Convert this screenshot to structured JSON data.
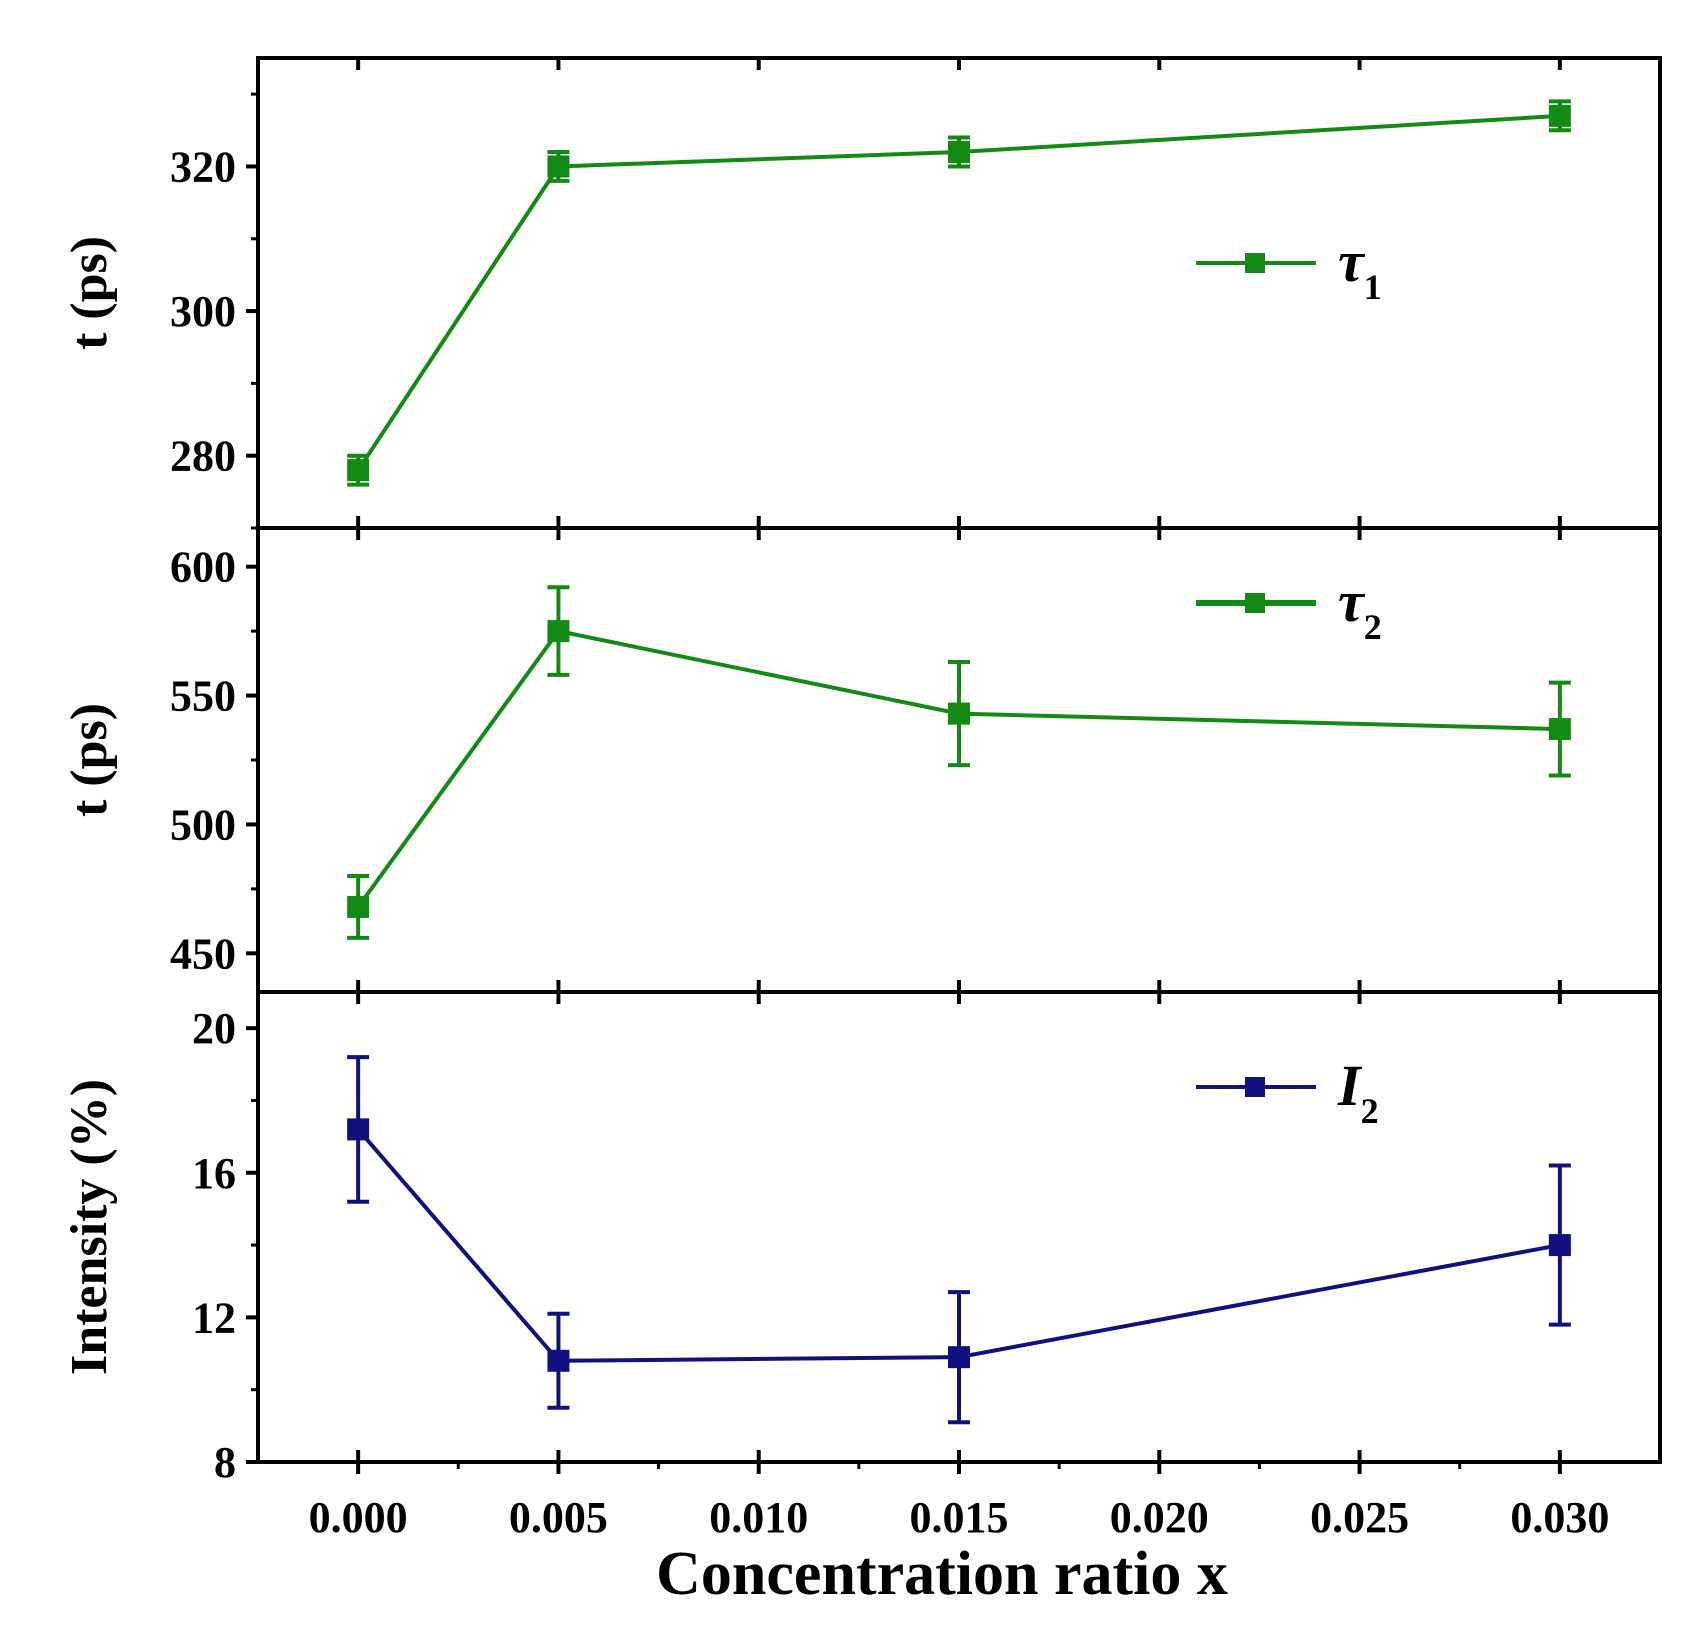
{
  "chart_data": {
    "type": "line",
    "xlabel": "Concentration ratio x",
    "x_ticks": [
      "0.000",
      "0.005",
      "0.010",
      "0.015",
      "0.020",
      "0.025",
      "0.030"
    ],
    "xlim": [
      -0.0025,
      0.0325
    ],
    "colors": {
      "tau": "#138a13",
      "intensity": "#10107e"
    },
    "panels": [
      {
        "id": "tau1",
        "ylabel": "t (ps)",
        "ylim": [
          270,
          335
        ],
        "y_ticks": [
          "280",
          "300",
          "320"
        ],
        "legend": {
          "name": "τ",
          "sub": "1",
          "position": "top-right"
        },
        "series": {
          "name": "τ1",
          "x": [
            0.0,
            0.005,
            0.015,
            0.03
          ],
          "y": [
            278,
            320,
            322,
            327
          ],
          "err": [
            2,
            2,
            2,
            2
          ]
        }
      },
      {
        "id": "tau2",
        "ylabel": "t (ps)",
        "ylim": [
          435,
          615
        ],
        "y_ticks": [
          "450",
          "500",
          "550",
          "600"
        ],
        "legend": {
          "name": "τ",
          "sub": "2",
          "position": "top-right"
        },
        "series": {
          "name": "τ2",
          "x": [
            0.0,
            0.005,
            0.015,
            0.03
          ],
          "y": [
            468,
            575,
            543,
            537
          ],
          "err": [
            12,
            17,
            20,
            18
          ]
        }
      },
      {
        "id": "intensity",
        "ylabel": "Intensity (%)",
        "ylim": [
          8,
          21
        ],
        "y_ticks": [
          "8",
          "12",
          "16",
          "20"
        ],
        "legend": {
          "name": "I",
          "sub": "2",
          "position": "top-right"
        },
        "series": {
          "name": "I2",
          "x": [
            0.0,
            0.005,
            0.015,
            0.03
          ],
          "y": [
            17.2,
            10.8,
            10.9,
            14.0
          ],
          "err": [
            2.0,
            1.3,
            1.8,
            2.2
          ]
        }
      }
    ]
  }
}
